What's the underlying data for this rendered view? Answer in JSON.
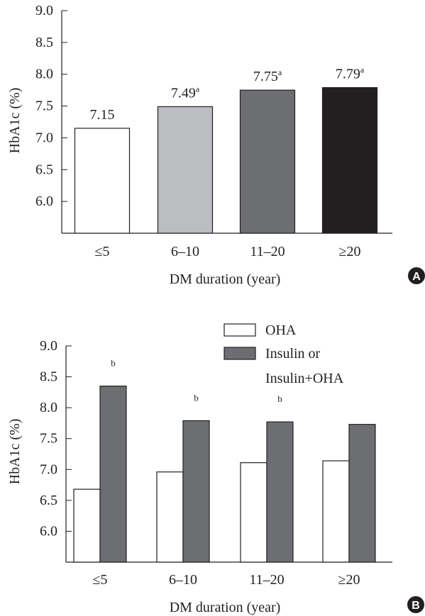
{
  "chart_data": [
    {
      "panel": "A",
      "type": "bar",
      "xlabel": "DM duration (year)",
      "ylabel": "HbA1c (%)",
      "ylim": [
        5.5,
        9.0
      ],
      "yticks": [
        "9.0",
        "8.5",
        "8.0",
        "7.5",
        "7.0",
        "6.5",
        "6.0"
      ],
      "categories": [
        "≤5",
        "6–10",
        "11–20",
        "≥20"
      ],
      "values": [
        7.15,
        7.49,
        7.75,
        7.79
      ],
      "value_labels": [
        "7.15",
        "7.49",
        "7.75",
        "7.79"
      ],
      "superscripts": [
        "",
        "a",
        "a",
        "a"
      ],
      "colors": [
        "#ffffff",
        "#bcbdc0",
        "#6d6e71",
        "#231f20"
      ]
    },
    {
      "panel": "B",
      "type": "bar",
      "xlabel": "DM duration (year)",
      "ylabel": "HbA1c (%)",
      "ylim": [
        5.5,
        9.0
      ],
      "yticks": [
        "9.0",
        "8.5",
        "8.0",
        "7.5",
        "7.0",
        "6.5",
        "6.0"
      ],
      "categories": [
        "≤5",
        "6–10",
        "11–20",
        "≥20"
      ],
      "series": [
        {
          "name": "OHA",
          "values": [
            6.68,
            6.96,
            7.11,
            7.14
          ],
          "color": "#ffffff"
        },
        {
          "name": "Insulin or Insulin+OHA",
          "legend_lines": [
            "Insulin or",
            "Insulin+OHA"
          ],
          "values": [
            8.35,
            7.79,
            7.77,
            7.73
          ],
          "color": "#6d6e71"
        }
      ],
      "annotations": [
        "b",
        "b",
        "b",
        ""
      ]
    }
  ]
}
